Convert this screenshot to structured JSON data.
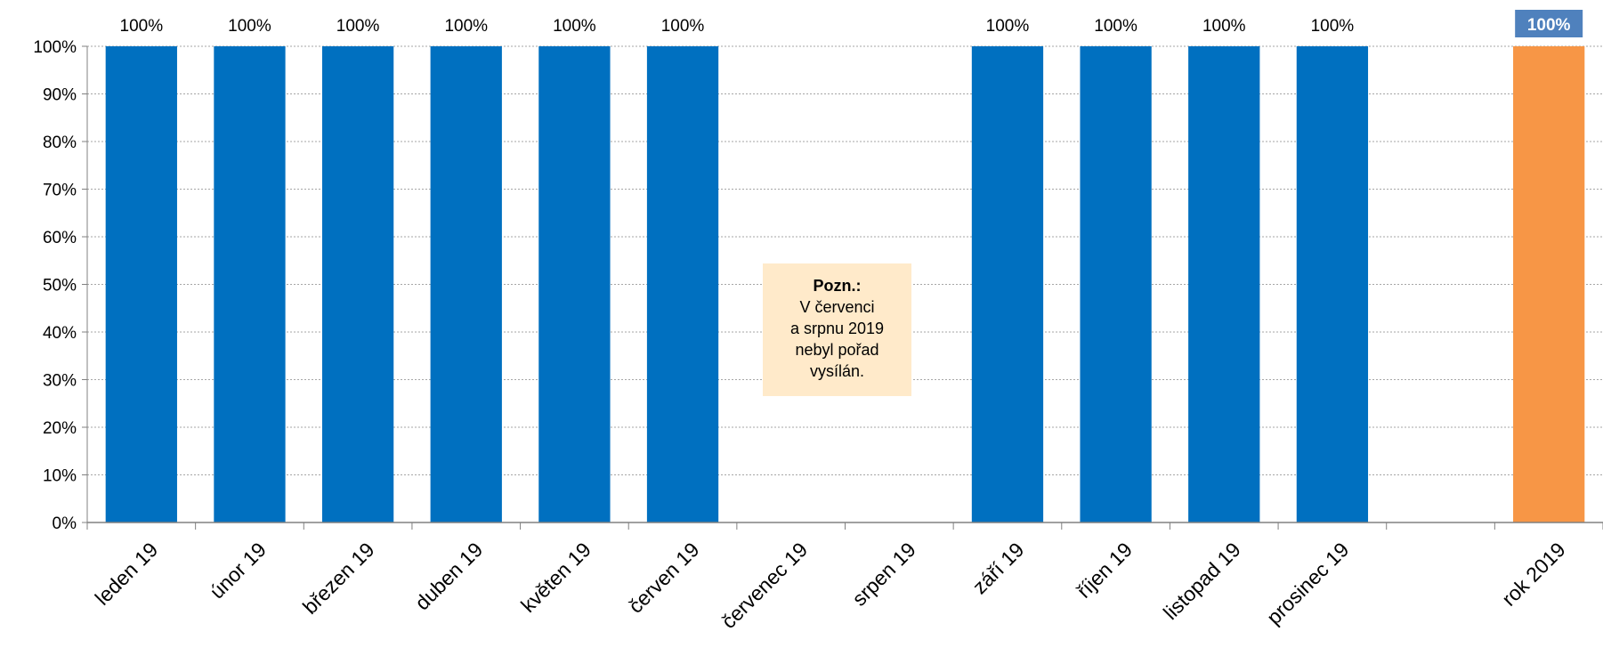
{
  "chart_data": {
    "type": "bar",
    "categories": [
      "leden 19",
      "únor 19",
      "březen 19",
      "duben 19",
      "květen 19",
      "červen 19",
      "červenec 19",
      "srpen 19",
      "září 19",
      "říjen 19",
      "listopad 19",
      "prosinec 19",
      "",
      "rok 2019"
    ],
    "values": [
      100,
      100,
      100,
      100,
      100,
      100,
      null,
      null,
      100,
      100,
      100,
      100,
      null,
      100
    ],
    "data_labels": [
      "100%",
      "100%",
      "100%",
      "100%",
      "100%",
      "100%",
      "",
      "",
      "100%",
      "100%",
      "100%",
      "100%",
      "",
      "100%"
    ],
    "y_ticks": [
      "0%",
      "10%",
      "20%",
      "30%",
      "40%",
      "50%",
      "60%",
      "70%",
      "80%",
      "90%",
      "100%"
    ],
    "ylim": [
      0,
      100
    ],
    "grid": true,
    "legend": "none",
    "colors": {
      "monthly_bar": "#0070c0",
      "total_bar": "#f79646",
      "total_label_bg": "#4f81bd",
      "gridline": "#a6a6a6",
      "note_bg": "#ffeaca"
    },
    "annotation": {
      "title": "Pozn.:",
      "lines": [
        "V červenci",
        "a srpnu 2019",
        "nebyl pořad",
        "vysílán."
      ]
    }
  }
}
